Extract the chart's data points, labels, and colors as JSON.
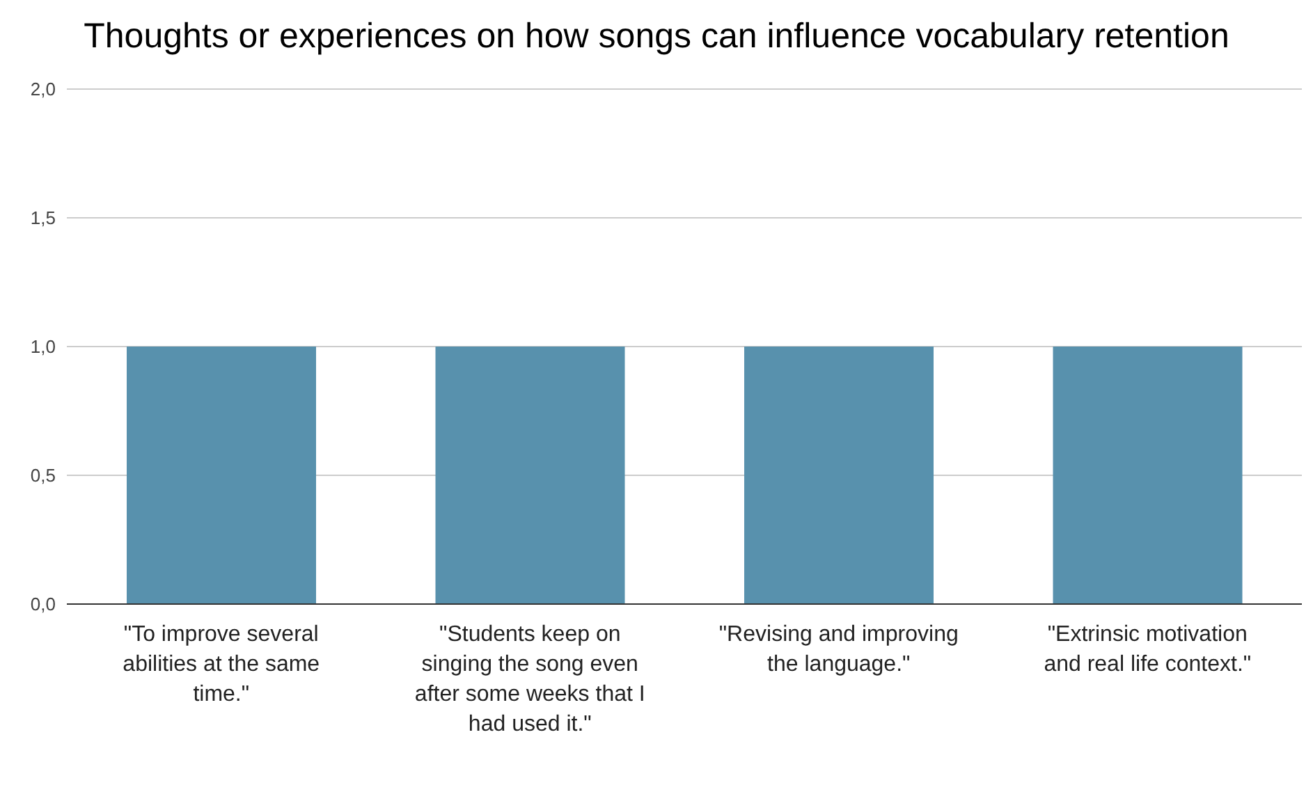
{
  "chart_data": {
    "type": "bar",
    "title": "Thoughts or experiences on how songs can influence vocabulary retention",
    "categories": [
      "\"To improve several abilities at the same time.\"",
      "\"Students keep on singing the song even after some weeks that I had used it.\"",
      "\"Revising and improving the language.\"",
      "\"Extrinsic motivation and real life context.\""
    ],
    "values": [
      1,
      1,
      1,
      1
    ],
    "color": "#5891ad",
    "ylim": [
      0,
      2
    ],
    "yticks": [
      {
        "value": 0,
        "label": "0,0"
      },
      {
        "value": 0.5,
        "label": "0,5"
      },
      {
        "value": 1,
        "label": "1,0"
      },
      {
        "value": 1.5,
        "label": "1,5"
      },
      {
        "value": 2,
        "label": "2,0"
      }
    ],
    "grid": "y"
  }
}
